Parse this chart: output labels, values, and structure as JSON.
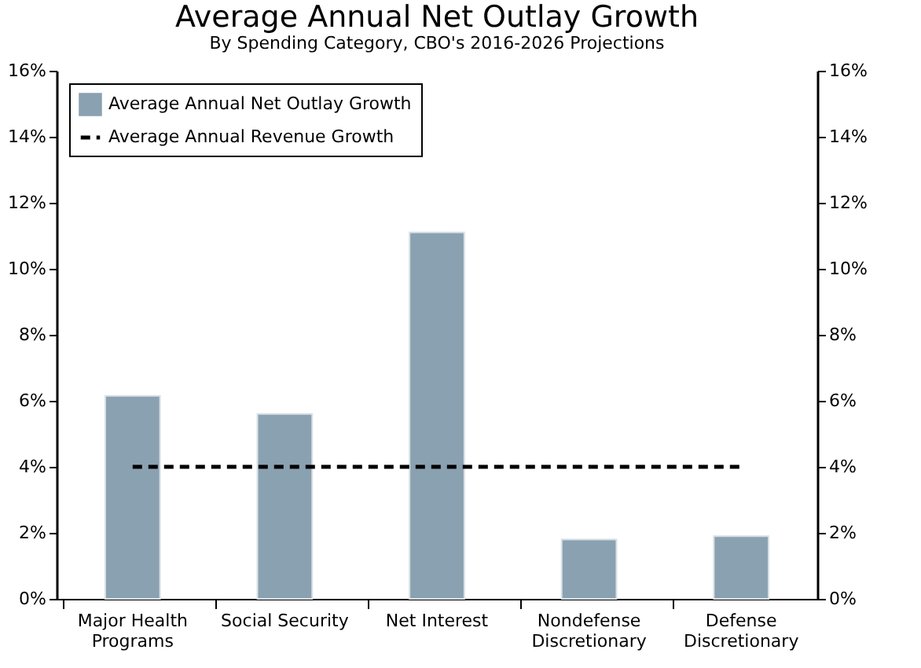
{
  "chart_data": {
    "type": "bar",
    "title": "Average Annual Net Outlay Growth",
    "subtitle": "By Spending Category, CBO's 2016-2026 Projections",
    "categories": [
      "Major Health\nPrograms",
      "Social Security",
      "Net Interest",
      "Nondefense\nDiscretionary",
      "Defense\nDiscretionary"
    ],
    "series": [
      {
        "name": "Average Annual Net Outlay Growth",
        "color": "#8aa1b1",
        "values": [
          6.15,
          5.6,
          11.1,
          1.8,
          1.9
        ]
      },
      {
        "name": "Average Annual Revenue Growth",
        "type": "line",
        "color": "#000000",
        "line_style": "dashed",
        "values": [
          4,
          4,
          4,
          4,
          4
        ]
      }
    ],
    "ylim": [
      0,
      16
    ],
    "yticks": [
      {
        "value": 0,
        "label": "0%"
      },
      {
        "value": 2,
        "label": "2%"
      },
      {
        "value": 4,
        "label": "4%"
      },
      {
        "value": 6,
        "label": "6%"
      },
      {
        "value": 8,
        "label": "8%"
      },
      {
        "value": 10,
        "label": "10%"
      },
      {
        "value": 12,
        "label": "12%"
      },
      {
        "value": 14,
        "label": "14%"
      },
      {
        "value": 16,
        "label": "16%"
      }
    ],
    "y2lim": [
      0,
      16
    ],
    "y2ticks": [
      {
        "value": 0,
        "label": "0%"
      },
      {
        "value": 2,
        "label": "2%"
      },
      {
        "value": 4,
        "label": "4%"
      },
      {
        "value": 6,
        "label": "6%"
      },
      {
        "value": 8,
        "label": "8%"
      },
      {
        "value": 10,
        "label": "10%"
      },
      {
        "value": 12,
        "label": "12%"
      },
      {
        "value": 14,
        "label": "14%"
      },
      {
        "value": 16,
        "label": "16%"
      }
    ],
    "grid": false,
    "legend": "top left"
  }
}
